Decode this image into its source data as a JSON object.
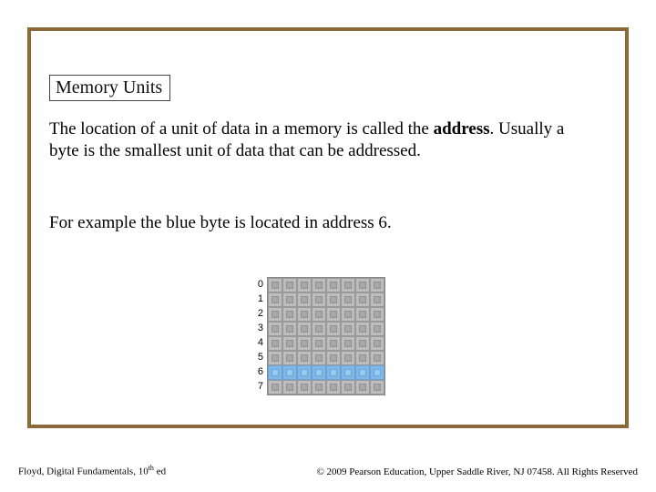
{
  "title": "Memory Units",
  "paragraph1_a": "The location of a unit of data in a memory is called the ",
  "paragraph1_bold": "address",
  "paragraph1_b": ". Usually a byte is the smallest unit of data that can be addressed.",
  "paragraph2": "For example the blue byte is located in address 6.",
  "memory_grid": {
    "rows": 8,
    "cols": 8,
    "row_labels": [
      "0",
      "1",
      "2",
      "3",
      "4",
      "5",
      "6",
      "7"
    ],
    "highlight_row": 6,
    "colors": {
      "cell_bg": "#bdbdbd",
      "cell_inner": "#a8a8a8",
      "cell_border": "#999999",
      "highlight_bg": "#7fb8e8",
      "highlight_inner": "#9acbef",
      "highlight_border": "#6aa3d4",
      "grid_border": "#888888"
    },
    "label_fontsize": 11
  },
  "footer": {
    "left_a": "Floyd, Digital Fundamentals, 10",
    "left_sup": "th",
    "left_b": " ed",
    "right": "© 2009 Pearson Education, Upper Saddle River, NJ 07458. All Rights Reserved"
  },
  "frame_border_color": "#8a6a3a"
}
